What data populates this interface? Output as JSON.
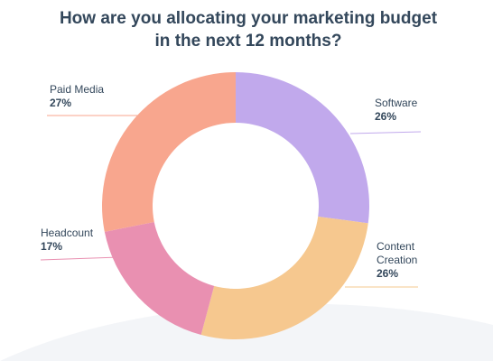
{
  "chart_data": {
    "type": "pie",
    "title": "How are you allocating your marketing budget in the next 12 months?",
    "categories": [
      "Software",
      "Content Creation",
      "Headcount",
      "Paid Media"
    ],
    "values": [
      26,
      26,
      17,
      27
    ],
    "value_labels": [
      "26%",
      "26%",
      "17%",
      "27%"
    ],
    "colors": [
      "#c1a9ec",
      "#f6c88f",
      "#e990b1",
      "#f8a68e"
    ],
    "donut": true
  }
}
